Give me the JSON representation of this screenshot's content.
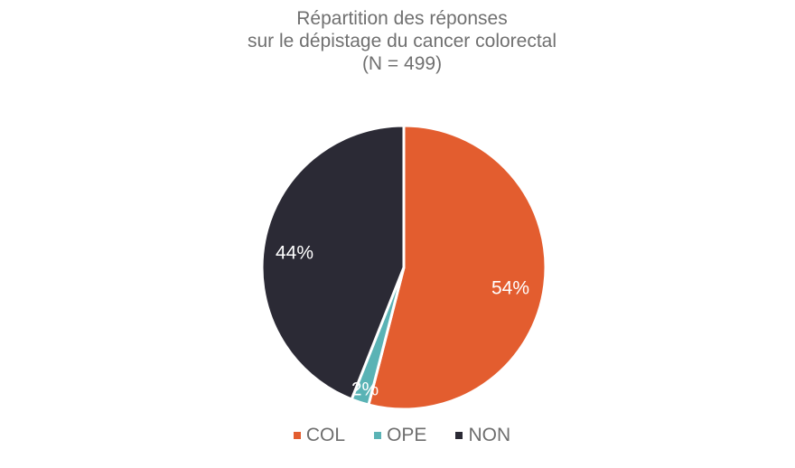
{
  "chart_data": {
    "type": "pie",
    "title": "Répartition des réponses sur le dépistage du cancer colorectal (N = 499)",
    "title_lines": [
      "Répartition des réponses",
      "sur le dépistage du cancer colorectal",
      "(N = 499)"
    ],
    "categories": [
      "COL",
      "OPE",
      "NON"
    ],
    "values": [
      54,
      2,
      44
    ],
    "labels": [
      "54%",
      "2%",
      "44%"
    ],
    "colors": [
      "#e35d2f",
      "#5ab3b5",
      "#2b2a35"
    ],
    "legend_position": "bottom",
    "start_angle": "top, clockwise"
  }
}
